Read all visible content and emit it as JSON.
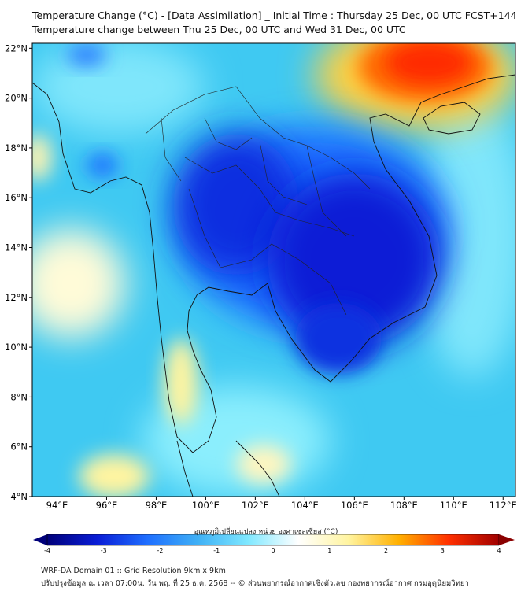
{
  "title": {
    "line1": "Temperature Change (°C) - [Data Assimilation] _ Initial Time : Thursday 25 Dec, 00 UTC FCST+144",
    "line2": "Temperature change between Thu 25 Dec, 00 UTC and Wed 31 Dec, 00 UTC"
  },
  "map": {
    "lon_range": [
      93,
      112.5
    ],
    "lat_range": [
      4,
      22.2
    ],
    "lon_ticks": [
      "94°E",
      "96°E",
      "98°E",
      "100°E",
      "102°E",
      "104°E",
      "106°E",
      "108°E",
      "110°E",
      "112°E"
    ],
    "lat_ticks": [
      "4°N",
      "6°N",
      "8°N",
      "10°N",
      "12°N",
      "14°N",
      "16°N",
      "18°N",
      "20°N",
      "22°N"
    ],
    "regions": [
      {
        "name": "strong-cooling-core",
        "value": -3.5,
        "lon": 104.5,
        "lat": 14.3
      },
      {
        "name": "cooling-myanmar-thailand",
        "value": -2.8,
        "lon": 100.5,
        "lat": 16.0
      },
      {
        "name": "cooling-mekong-delta",
        "value": -3.2,
        "lon": 105.5,
        "lat": 10.8
      },
      {
        "name": "warming-south-china",
        "value": 3.2,
        "lon": 108.5,
        "lat": 21.0
      },
      {
        "name": "warming-andaman-sea",
        "value": 0.5,
        "lon": 95.5,
        "lat": 13.0
      },
      {
        "name": "warming-malay-peninsula",
        "value": 0.6,
        "lon": 99.3,
        "lat": 8.8
      },
      {
        "name": "warming-bay-of-bengal",
        "value": 0.4,
        "lon": 95.5,
        "lat": 4.6
      }
    ]
  },
  "colorbar": {
    "label": "อุณหภูมิเปลี่ยนแปลง หน่วย องศาเซลเซียส (°C)",
    "min": -4,
    "max": 4,
    "ticks": [
      "-4",
      "-3",
      "-2",
      "-1",
      "0",
      "1",
      "2",
      "3",
      "4"
    ],
    "colors": [
      "#00007a",
      "#0a1dd6",
      "#1f6fff",
      "#3fb0f5",
      "#7fe8ff",
      "#ffffff",
      "#fff4a0",
      "#ffb000",
      "#ff3000",
      "#a00000"
    ]
  },
  "footer": {
    "line1": "WRF-DA Domain 01 :: Grid Resolution 9km x 9km",
    "line2": "ปรับปรุงข้อมูล ณ เวลา 07:00น. วัน พฤ. ที่ 25 ธ.ค. 2568 -- © ส่วนพยากรณ์อากาศเชิงตัวเลข กองพยากรณ์อากาศ กรมอุตุนิยมวิทยา"
  }
}
